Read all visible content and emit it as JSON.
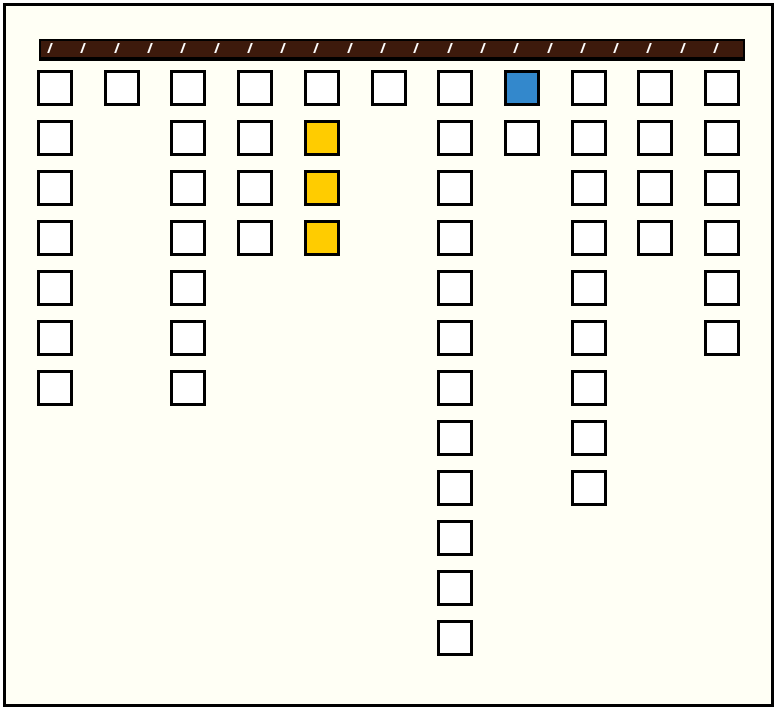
{
  "colors": {
    "empty": "#ffffff",
    "yellow": "#ffcc00",
    "blue": "#3388cc",
    "bar": "#3d1a0c",
    "background": "#fffff5"
  },
  "columns": [
    [
      "empty",
      "empty",
      "empty",
      "empty",
      "empty",
      "empty",
      "empty"
    ],
    [
      "empty"
    ],
    [
      "empty",
      "empty",
      "empty",
      "empty",
      "empty",
      "empty",
      "empty"
    ],
    [
      "empty",
      "empty",
      "empty",
      "empty"
    ],
    [
      "empty",
      "yellow",
      "yellow",
      "yellow"
    ],
    [
      "empty"
    ],
    [
      "empty",
      "empty",
      "empty",
      "empty",
      "empty",
      "empty",
      "empty",
      "empty",
      "empty",
      "empty",
      "empty",
      "empty"
    ],
    [
      "blue",
      "empty"
    ],
    [
      "empty",
      "empty",
      "empty",
      "empty",
      "empty",
      "empty",
      "empty",
      "empty",
      "empty"
    ],
    [
      "empty",
      "empty",
      "empty",
      "empty"
    ],
    [
      "empty",
      "empty",
      "empty",
      "empty",
      "empty",
      "empty"
    ]
  ]
}
